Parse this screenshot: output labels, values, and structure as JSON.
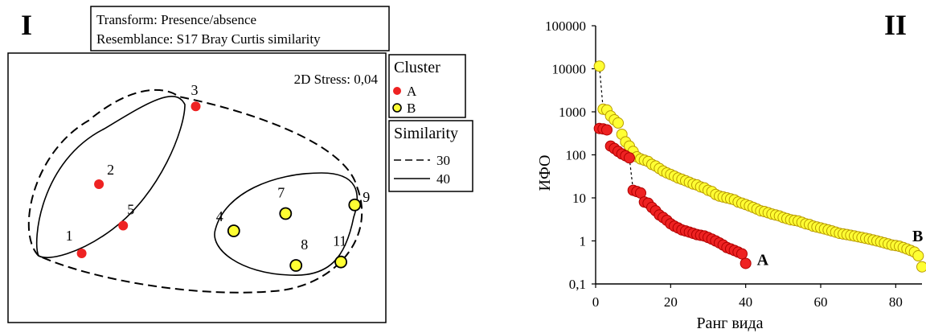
{
  "colors": {
    "cluster_a": "#ee2222",
    "cluster_b": "#ffff33"
  },
  "chart_data": [
    {
      "type": "scatter",
      "panel_label": "I",
      "header": [
        "Transform: Presence/absence",
        "Resemblance: S17 Bray Curtis similarity"
      ],
      "stress": "2D Stress: 0,04",
      "legend_cluster": {
        "title": "Cluster",
        "items": [
          "A",
          "B"
        ]
      },
      "legend_similarity": {
        "title": "Similarity",
        "items": [
          "30",
          "40"
        ]
      },
      "points": [
        {
          "label": "1",
          "cluster": "A",
          "x": 0.12,
          "y": 0.07
        },
        {
          "label": "2",
          "cluster": "A",
          "x": 0.17,
          "y": 0.47
        },
        {
          "label": "3",
          "cluster": "A",
          "x": 0.45,
          "y": 0.92
        },
        {
          "label": "4",
          "cluster": "B",
          "x": 0.56,
          "y": 0.2
        },
        {
          "label": "5",
          "cluster": "A",
          "x": 0.24,
          "y": 0.23
        },
        {
          "label": "7",
          "cluster": "B",
          "x": 0.71,
          "y": 0.3
        },
        {
          "label": "8",
          "cluster": "B",
          "x": 0.74,
          "y": 0.0
        },
        {
          "label": "9",
          "cluster": "B",
          "x": 0.91,
          "y": 0.35
        },
        {
          "label": "11",
          "cluster": "B",
          "x": 0.87,
          "y": 0.02
        }
      ]
    },
    {
      "type": "scatter",
      "panel_label": "II",
      "xlabel": "Ранг вида",
      "ylabel": "ИФО",
      "y_scale": "log",
      "xlim": [
        0,
        87
      ],
      "ylim": [
        0.1,
        100000
      ],
      "x_ticks": [
        "0",
        "20",
        "40",
        "60",
        "80"
      ],
      "y_ticks": [
        "0,1",
        "1",
        "10",
        "100",
        "1000",
        "10000",
        "100000"
      ],
      "series": [
        {
          "name": "A",
          "values": [
            410,
            400,
            380,
            160,
            140,
            120,
            105,
            95,
            85,
            15,
            14,
            13,
            8,
            7.5,
            6,
            5,
            4,
            3.5,
            3,
            2.5,
            2.2,
            2,
            1.8,
            1.7,
            1.6,
            1.5,
            1.4,
            1.35,
            1.3,
            1.2,
            1.1,
            1,
            0.9,
            0.8,
            0.7,
            0.65,
            0.6,
            0.55,
            0.5,
            0.3
          ]
        },
        {
          "name": "B",
          "values": [
            11500,
            1150,
            1100,
            800,
            650,
            550,
            300,
            200,
            160,
            120,
            90,
            80,
            75,
            70,
            60,
            55,
            48,
            42,
            38,
            35,
            32,
            29,
            27,
            25,
            23,
            21,
            20,
            18,
            17,
            15,
            14,
            12,
            11,
            10.5,
            10,
            9.5,
            9,
            8,
            7.5,
            7,
            6.5,
            6,
            5.5,
            5,
            4.8,
            4.5,
            4.2,
            4,
            3.8,
            3.5,
            3.3,
            3.1,
            3,
            2.9,
            2.7,
            2.5,
            2.4,
            2.2,
            2.1,
            2,
            1.9,
            1.8,
            1.7,
            1.6,
            1.5,
            1.45,
            1.4,
            1.35,
            1.3,
            1.25,
            1.2,
            1.15,
            1.1,
            1.05,
            1,
            0.95,
            0.9,
            0.85,
            0.8,
            0.78,
            0.75,
            0.7,
            0.65,
            0.6,
            0.55,
            0.45,
            0.25
          ]
        }
      ]
    }
  ]
}
